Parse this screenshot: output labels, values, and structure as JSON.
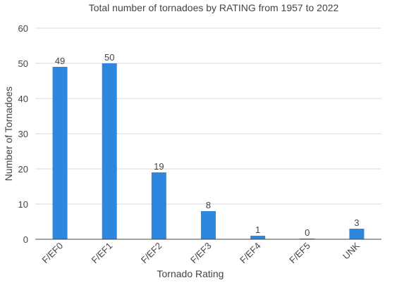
{
  "chart_data": {
    "type": "bar",
    "title": "Total number of tornadoes by RATING from 1957 to 2022",
    "xlabel": "Tornado Rating",
    "ylabel": "Number of Tornadoes",
    "categories": [
      "F/EF0",
      "F/EF1",
      "F/EF2",
      "F/EF3",
      "F/EF4",
      "F/EF5",
      "UNK"
    ],
    "values": [
      49,
      50,
      19,
      8,
      1,
      0,
      3
    ],
    "ylim": [
      0,
      60
    ],
    "yticks": [
      0,
      10,
      20,
      30,
      40,
      50,
      60
    ],
    "grid": true,
    "legend": "none",
    "bar_color": "#2e86de",
    "data_labels": true
  }
}
